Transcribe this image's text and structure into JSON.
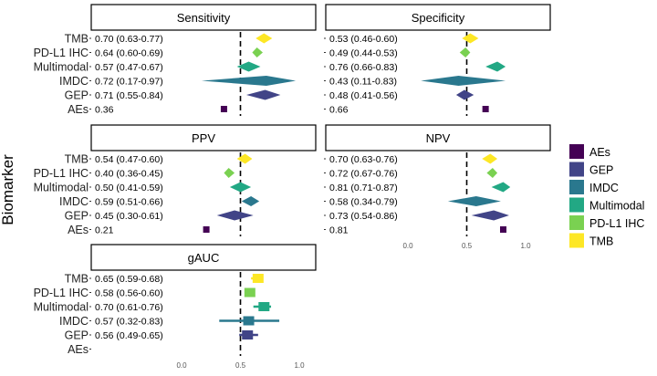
{
  "y_axis_title": "Biomarker",
  "colors": {
    "AEs": "#440154",
    "GEP": "#414487",
    "IMDC": "#2a788e",
    "Multimodal": "#22a884",
    "PD-L1 IHC": "#7ad151",
    "TMB": "#fde725"
  },
  "legend": {
    "placement": "right",
    "items": [
      "AEs",
      "GEP",
      "IMDC",
      "Multimodal",
      "PD-L1 IHC",
      "TMB"
    ]
  },
  "chart_data": [
    {
      "type": "forest",
      "title": "Sensitivity",
      "reference_line": 0.5,
      "xlim": [
        0,
        1
      ],
      "x_tick_labels": [],
      "rows": [
        {
          "label": "TMB",
          "text": "0.70 (0.63-0.77)",
          "est": 0.7,
          "lo": 0.63,
          "hi": 0.77,
          "color": "#fde725"
        },
        {
          "label": "PD-L1 IHC",
          "text": "0.64 (0.60-0.69)",
          "est": 0.64,
          "lo": 0.6,
          "hi": 0.69,
          "color": "#7ad151"
        },
        {
          "label": "Multimodal",
          "text": "0.57 (0.47-0.67)",
          "est": 0.57,
          "lo": 0.47,
          "hi": 0.67,
          "color": "#22a884"
        },
        {
          "label": "IMDC",
          "text": "0.72 (0.17-0.97)",
          "est": 0.72,
          "lo": 0.17,
          "hi": 0.97,
          "color": "#2a788e"
        },
        {
          "label": "GEP",
          "text": "0.71 (0.55-0.84)",
          "est": 0.71,
          "lo": 0.55,
          "hi": 0.84,
          "color": "#414487"
        },
        {
          "label": "AEs",
          "text": "0.36",
          "est": 0.36,
          "color": "#440154"
        }
      ]
    },
    {
      "type": "forest",
      "title": "Specificity",
      "reference_line": 0.5,
      "xlim": [
        0,
        1
      ],
      "x_tick_labels": [],
      "rows": [
        {
          "label": "TMB",
          "text": "0.53 (0.46-0.60)",
          "est": 0.53,
          "lo": 0.46,
          "hi": 0.6,
          "color": "#fde725"
        },
        {
          "label": "PD-L1 IHC",
          "text": "0.49 (0.44-0.53)",
          "est": 0.49,
          "lo": 0.44,
          "hi": 0.53,
          "color": "#7ad151"
        },
        {
          "label": "Multimodal",
          "text": "0.76 (0.66-0.83)",
          "est": 0.76,
          "lo": 0.66,
          "hi": 0.83,
          "color": "#22a884"
        },
        {
          "label": "IMDC",
          "text": "0.43 (0.11-0.83)",
          "est": 0.43,
          "lo": 0.11,
          "hi": 0.83,
          "color": "#2a788e"
        },
        {
          "label": "GEP",
          "text": "0.48 (0.41-0.56)",
          "est": 0.48,
          "lo": 0.41,
          "hi": 0.56,
          "color": "#414487"
        },
        {
          "label": "AEs",
          "text": "0.66",
          "est": 0.66,
          "color": "#440154"
        }
      ]
    },
    {
      "type": "forest",
      "title": "PPV",
      "reference_line": 0.5,
      "xlim": [
        0,
        1
      ],
      "x_tick_labels": [],
      "rows": [
        {
          "label": "TMB",
          "text": "0.54 (0.47-0.60)",
          "est": 0.54,
          "lo": 0.47,
          "hi": 0.6,
          "color": "#fde725"
        },
        {
          "label": "PD-L1 IHC",
          "text": "0.40 (0.36-0.45)",
          "est": 0.4,
          "lo": 0.36,
          "hi": 0.45,
          "color": "#7ad151"
        },
        {
          "label": "Multimodal",
          "text": "0.50 (0.41-0.59)",
          "est": 0.5,
          "lo": 0.41,
          "hi": 0.59,
          "color": "#22a884"
        },
        {
          "label": "IMDC",
          "text": "0.59 (0.51-0.66)",
          "est": 0.59,
          "lo": 0.51,
          "hi": 0.66,
          "color": "#2a788e"
        },
        {
          "label": "GEP",
          "text": "0.45 (0.30-0.61)",
          "est": 0.45,
          "lo": 0.3,
          "hi": 0.61,
          "color": "#414487"
        },
        {
          "label": "AEs",
          "text": "0.21",
          "est": 0.21,
          "color": "#440154"
        }
      ]
    },
    {
      "type": "forest",
      "title": "NPV",
      "reference_line": 0.5,
      "xlim": [
        0,
        1
      ],
      "x_tick_labels": [
        "0.0",
        "0.5",
        "1.0"
      ],
      "rows": [
        {
          "label": "TMB",
          "text": "0.70 (0.63-0.76)",
          "est": 0.7,
          "lo": 0.63,
          "hi": 0.76,
          "color": "#fde725"
        },
        {
          "label": "PD-L1 IHC",
          "text": "0.72 (0.67-0.76)",
          "est": 0.72,
          "lo": 0.67,
          "hi": 0.76,
          "color": "#7ad151"
        },
        {
          "label": "Multimodal",
          "text": "0.81 (0.71-0.87)",
          "est": 0.81,
          "lo": 0.71,
          "hi": 0.87,
          "color": "#22a884"
        },
        {
          "label": "IMDC",
          "text": "0.58 (0.34-0.79)",
          "est": 0.58,
          "lo": 0.34,
          "hi": 0.79,
          "color": "#2a788e"
        },
        {
          "label": "GEP",
          "text": "0.73 (0.54-0.86)",
          "est": 0.73,
          "lo": 0.54,
          "hi": 0.86,
          "color": "#414487"
        },
        {
          "label": "AEs",
          "text": "0.81",
          "est": 0.81,
          "color": "#440154"
        }
      ]
    },
    {
      "type": "forest",
      "title": "gAUC",
      "reference_line": 0.5,
      "xlim": [
        0,
        1
      ],
      "x_tick_labels": [
        "0.0",
        "0.5",
        "1.0"
      ],
      "marker": "box",
      "rows": [
        {
          "label": "TMB",
          "text": "0.65 (0.59-0.68)",
          "est": 0.65,
          "lo": 0.59,
          "hi": 0.68,
          "color": "#fde725"
        },
        {
          "label": "PD-L1 IHC",
          "text": "0.58 (0.56-0.60)",
          "est": 0.58,
          "lo": 0.56,
          "hi": 0.6,
          "color": "#7ad151"
        },
        {
          "label": "Multimodal",
          "text": "0.70 (0.61-0.76)",
          "est": 0.7,
          "lo": 0.61,
          "hi": 0.76,
          "color": "#22a884"
        },
        {
          "label": "IMDC",
          "text": "0.57 (0.32-0.83)",
          "est": 0.57,
          "lo": 0.32,
          "hi": 0.83,
          "color": "#2a788e"
        },
        {
          "label": "GEP",
          "text": "0.56 (0.49-0.65)",
          "est": 0.56,
          "lo": 0.49,
          "hi": 0.65,
          "color": "#414487"
        },
        {
          "label": "AEs",
          "text": "",
          "color": "#440154"
        }
      ]
    }
  ]
}
